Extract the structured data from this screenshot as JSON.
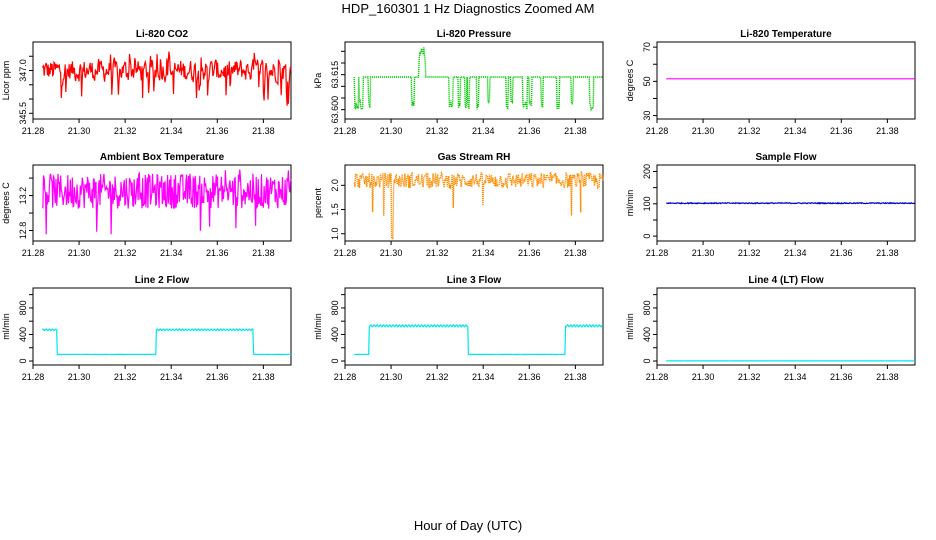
{
  "figure": {
    "title": "HDP_160301  1 Hz Diagnostics Zoomed AM",
    "xlabel": "Hour of Day (UTC)"
  },
  "chart_data": [
    {
      "type": "line",
      "title": "Li-820 CO2",
      "ylabel": "Licor ppm",
      "color": "#ff0000",
      "xlim": [
        21.28,
        21.392
      ],
      "xticks": [
        21.28,
        21.3,
        21.32,
        21.34,
        21.36,
        21.38
      ],
      "xticklabels": [
        "21.28",
        "21.30",
        "21.32",
        "21.34",
        "21.36",
        "21.38"
      ],
      "ylim": [
        345.3,
        348.0
      ],
      "yticks": [
        345.5,
        347.0
      ],
      "yticklabels": [
        "345.5",
        "347.0"
      ],
      "yminor": [
        346.0,
        346.5,
        347.5
      ],
      "series": [
        {
          "name": "CO2",
          "x_range": [
            21.284,
            21.392
          ],
          "n": 380,
          "base": 347.0,
          "noise": 0.25,
          "spike_down": 345.5,
          "spike_up": 347.9,
          "spike_prob": 0.08,
          "smooth": 0.3
        }
      ]
    },
    {
      "type": "line",
      "title": "Li-820 Pressure",
      "ylabel": "kPa",
      "color": "#00cc00",
      "xlim": [
        21.28,
        21.392
      ],
      "xticks": [
        21.28,
        21.3,
        21.32,
        21.34,
        21.36,
        21.38
      ],
      "xticklabels": [
        "21.28",
        "21.30",
        "21.32",
        "21.34",
        "21.36",
        "21.38"
      ],
      "ylim": [
        63.596,
        63.629
      ],
      "yticks": [
        63.6,
        63.615
      ],
      "yticklabels": [
        "63.600",
        "63.615"
      ],
      "yminor": [
        63.605,
        63.61,
        63.62,
        63.625
      ],
      "series": [
        {
          "name": "Pressure",
          "x_range": [
            21.284,
            21.392
          ],
          "n": 380,
          "base": 63.614,
          "drops": [
            21.2845,
            21.2855,
            21.2865,
            21.2875,
            21.2905,
            21.3095,
            21.3255,
            21.3265,
            21.3295,
            21.3325,
            21.3335,
            21.3375,
            21.3425,
            21.3505,
            21.3525,
            21.3575,
            21.3585,
            21.3605,
            21.3655,
            21.3725,
            21.3785,
            21.3865,
            21.3875
          ],
          "drop_to": 63.6,
          "spike_up": [
            21.3125,
            21.3135,
            21.3145
          ],
          "spike_to": 63.627,
          "style": "dotted"
        }
      ]
    },
    {
      "type": "line",
      "title": "Li-820 Temperature",
      "ylabel": "degrees C",
      "color": "#ff00ff",
      "xlim": [
        21.28,
        21.392
      ],
      "xticks": [
        21.28,
        21.3,
        21.32,
        21.34,
        21.36,
        21.38
      ],
      "xticklabels": [
        "21.28",
        "21.30",
        "21.32",
        "21.34",
        "21.36",
        "21.38"
      ],
      "ylim": [
        28,
        73
      ],
      "yticks": [
        30,
        50,
        70
      ],
      "yticklabels": [
        "30",
        "50",
        "70"
      ],
      "yminor": [
        40,
        60
      ],
      "series": [
        {
          "name": "Temperature",
          "x_range": [
            21.284,
            21.392
          ],
          "n": 380,
          "base": 51.5,
          "noise": 0.0,
          "style": "flat"
        }
      ]
    },
    {
      "type": "line",
      "title": "Ambient Box Temperature",
      "ylabel": "degrees C",
      "color": "#ff00ff",
      "xlim": [
        21.28,
        21.392
      ],
      "xticks": [
        21.28,
        21.3,
        21.32,
        21.34,
        21.36,
        21.38
      ],
      "xticklabels": [
        "21.28",
        "21.30",
        "21.32",
        "21.34",
        "21.36",
        "21.38"
      ],
      "ylim": [
        12.68,
        13.55
      ],
      "yticks": [
        12.8,
        13.2
      ],
      "yticklabels": [
        "12.8",
        "13.2"
      ],
      "yminor": [
        13.0,
        13.4
      ],
      "series": [
        {
          "name": "Box Temp",
          "x_range": [
            21.284,
            21.392
          ],
          "n": 380,
          "base": 13.25,
          "noise": 0.1,
          "spike_down": 12.72,
          "spike_up": 13.5,
          "spike_prob": 0.06,
          "smooth": 0.0
        }
      ]
    },
    {
      "type": "line",
      "title": "Gas Stream RH",
      "ylabel": "percent",
      "color": "#ff8c00",
      "xlim": [
        21.28,
        21.392
      ],
      "xticks": [
        21.28,
        21.3,
        21.32,
        21.34,
        21.36,
        21.38
      ],
      "xticklabels": [
        "21.28",
        "21.30",
        "21.32",
        "21.34",
        "21.36",
        "21.38"
      ],
      "ylim": [
        0.85,
        2.42
      ],
      "yticks": [
        1.0,
        1.5,
        2.0
      ],
      "yticklabels": [
        "1.0",
        "1.5",
        "2.0"
      ],
      "yminor": [],
      "series": [
        {
          "name": "RH",
          "x_range": [
            21.284,
            21.392
          ],
          "n": 380,
          "base": 2.1,
          "noise": 0.08,
          "spike_down": 1.3,
          "spike_up": 2.3,
          "spike_prob": 0.02,
          "deep": [
            21.3005
          ],
          "deep_to": 0.9,
          "smooth": 0.0,
          "style": "dotted"
        }
      ]
    },
    {
      "type": "line",
      "title": "Sample Flow",
      "ylabel": "ml/min",
      "color": "#0000cc",
      "xlim": [
        21.28,
        21.392
      ],
      "xticks": [
        21.28,
        21.3,
        21.32,
        21.34,
        21.36,
        21.38
      ],
      "xticklabels": [
        "21.28",
        "21.30",
        "21.32",
        "21.34",
        "21.36",
        "21.38"
      ],
      "ylim": [
        -15,
        220
      ],
      "yticks": [
        0,
        100,
        200
      ],
      "yticklabels": [
        "0",
        "100",
        "200"
      ],
      "yminor": [
        50,
        150
      ],
      "series": [
        {
          "name": "Sample Flow",
          "x_range": [
            21.284,
            21.392
          ],
          "n": 380,
          "base": 102,
          "noise": 1.5,
          "style": "flat"
        }
      ]
    },
    {
      "type": "line",
      "title": "Line 2 Flow",
      "ylabel": "ml/min",
      "color": "#00e5ee",
      "xlim": [
        21.28,
        21.392
      ],
      "xticks": [
        21.28,
        21.3,
        21.32,
        21.34,
        21.36,
        21.38
      ],
      "xticklabels": [
        "21.28",
        "21.30",
        "21.32",
        "21.34",
        "21.36",
        "21.38"
      ],
      "ylim": [
        -60,
        1100
      ],
      "yticks": [
        0,
        200,
        400,
        600,
        800,
        1000
      ],
      "yticklabels": [
        "0",
        "",
        "400",
        "",
        "800",
        ""
      ],
      "yminor": [],
      "series": [
        {
          "name": "Line 2",
          "x_range": [
            21.284,
            21.392
          ],
          "n": 380,
          "steps": [
            [
              21.284,
              21.2905,
              470
            ],
            [
              21.2905,
              21.3335,
              100
            ],
            [
              21.3335,
              21.3755,
              470
            ],
            [
              21.3755,
              21.392,
              100
            ]
          ],
          "noise": 12,
          "ripple": true
        }
      ]
    },
    {
      "type": "line",
      "title": "Line 3 Flow",
      "ylabel": "ml/min",
      "color": "#00e5ee",
      "xlim": [
        21.28,
        21.392
      ],
      "xticks": [
        21.28,
        21.3,
        21.32,
        21.34,
        21.36,
        21.38
      ],
      "xticklabels": [
        "21.28",
        "21.30",
        "21.32",
        "21.34",
        "21.36",
        "21.38"
      ],
      "ylim": [
        -60,
        1100
      ],
      "yticks": [
        0,
        200,
        400,
        600,
        800,
        1000
      ],
      "yticklabels": [
        "0",
        "",
        "400",
        "",
        "800",
        ""
      ],
      "yminor": [],
      "series": [
        {
          "name": "Line 3",
          "x_range": [
            21.284,
            21.392
          ],
          "n": 380,
          "steps": [
            [
              21.284,
              21.2905,
              100
            ],
            [
              21.2905,
              21.3335,
              530
            ],
            [
              21.3335,
              21.3755,
              100
            ],
            [
              21.3755,
              21.392,
              530
            ]
          ],
          "noise": 15,
          "ripple": true
        }
      ]
    },
    {
      "type": "line",
      "title": "Line 4 (LT) Flow",
      "ylabel": "ml/min",
      "color": "#00e5ee",
      "xlim": [
        21.28,
        21.392
      ],
      "xticks": [
        21.28,
        21.3,
        21.32,
        21.34,
        21.36,
        21.38
      ],
      "xticklabels": [
        "21.28",
        "21.30",
        "21.32",
        "21.34",
        "21.36",
        "21.38"
      ],
      "ylim": [
        -60,
        1100
      ],
      "yticks": [
        0,
        200,
        400,
        600,
        800,
        1000
      ],
      "yticklabels": [
        "0",
        "",
        "400",
        "",
        "800",
        ""
      ],
      "yminor": [],
      "series": [
        {
          "name": "Line 4",
          "x_range": [
            21.284,
            21.392
          ],
          "n": 380,
          "base": 2,
          "noise": 1,
          "style": "flat"
        }
      ]
    }
  ]
}
